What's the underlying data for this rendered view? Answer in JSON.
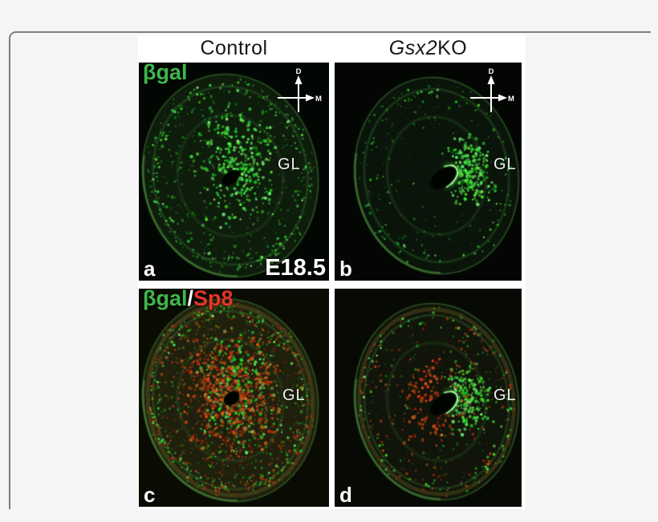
{
  "header": {
    "left": "Control",
    "right_italic": "Gsx2",
    "right_rest": " KO"
  },
  "axes": {
    "up": "D",
    "right": "M"
  },
  "panels": [
    {
      "letter": "a",
      "marker_green": "βgal",
      "region": "GL",
      "stage": "E18.5"
    },
    {
      "letter": "b",
      "region": "GL"
    },
    {
      "letter": "c",
      "marker_green": "βgal",
      "marker_sep": "/",
      "marker_red": "Sp8",
      "region": "GL"
    },
    {
      "letter": "d",
      "region": "GL"
    }
  ],
  "colors": {
    "marker_green": "#3fb64a",
    "marker_red": "#e53428",
    "label_white": "#ffffff",
    "frame_border": "#7e7e7e",
    "figure_bg": "#ffffff",
    "page_bg": "#f5f5f5",
    "signal_green": "#33cc44",
    "signal_red": "#d9441f"
  }
}
